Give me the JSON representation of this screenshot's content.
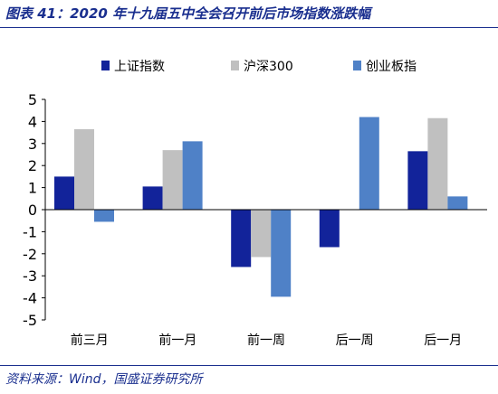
{
  "figure_title": "图表 41：2020 年十九届五中全会召开前后市场指数涨跌幅",
  "source": "资料来源：Wind，国盛证券研究所",
  "chart_data": {
    "type": "bar",
    "categories": [
      "前三月",
      "前一月",
      "前一周",
      "后一周",
      "后一月"
    ],
    "series": [
      {
        "name": "上证指数",
        "color": "#12239a",
        "values": [
          1.5,
          1.05,
          -2.6,
          -1.7,
          2.65
        ]
      },
      {
        "name": "沪深300",
        "color": "#c0c0c0",
        "values": [
          3.65,
          2.7,
          -2.15,
          0.0,
          4.15
        ]
      },
      {
        "name": "创业板指",
        "color": "#4f81c7",
        "values": [
          -0.55,
          3.1,
          -3.95,
          4.2,
          0.6
        ]
      }
    ],
    "ylim": [
      -5,
      5
    ],
    "yticks": [
      5,
      4,
      3,
      2,
      1,
      0,
      -1,
      -2,
      -3,
      -4,
      -5
    ],
    "legend_position": "top",
    "grid": false
  }
}
